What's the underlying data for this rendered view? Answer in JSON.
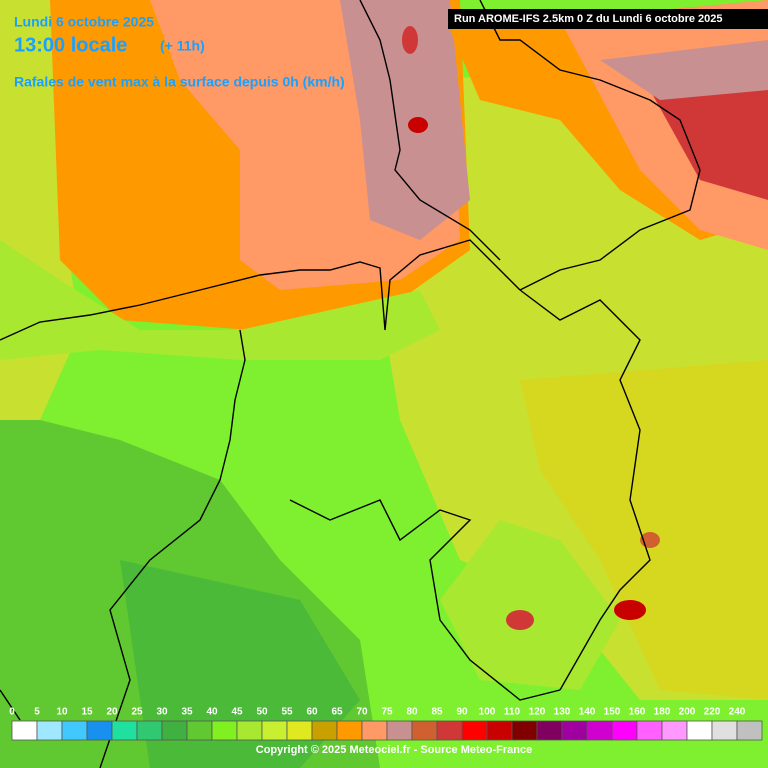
{
  "header": {
    "date": "Lundi 6 octobre 2025",
    "time": "13:00 locale",
    "offset": "(+ 11h)",
    "subtitle": "Rafales de vent max à la surface depuis 0h (km/h)",
    "run": "Run AROME-IFS 2.5km 0 Z du Lundi 6 octobre 2025"
  },
  "legend": {
    "stops": [
      {
        "value": 0,
        "color": "#ffffff"
      },
      {
        "value": 5,
        "color": "#a0e8ff"
      },
      {
        "value": 10,
        "color": "#40c8ff"
      },
      {
        "value": 15,
        "color": "#1890f0"
      },
      {
        "value": 20,
        "color": "#20e0a0"
      },
      {
        "value": 25,
        "color": "#30c870"
      },
      {
        "value": 30,
        "color": "#40b040"
      },
      {
        "value": 35,
        "color": "#60c830"
      },
      {
        "value": 40,
        "color": "#80f020"
      },
      {
        "value": 45,
        "color": "#a8e830"
      },
      {
        "value": 50,
        "color": "#c8f030"
      },
      {
        "value": 55,
        "color": "#e0e820"
      },
      {
        "value": 60,
        "color": "#c8a000"
      },
      {
        "value": 65,
        "color": "#ff9900"
      },
      {
        "value": 70,
        "color": "#ff9966"
      },
      {
        "value": 75,
        "color": "#c89090"
      },
      {
        "value": 80,
        "color": "#d06030"
      },
      {
        "value": 85,
        "color": "#d03838"
      },
      {
        "value": 90,
        "color": "#ff0000"
      },
      {
        "value": 100,
        "color": "#c80000"
      },
      {
        "value": 110,
        "color": "#800000"
      },
      {
        "value": 120,
        "color": "#800060"
      },
      {
        "value": 130,
        "color": "#a000a0"
      },
      {
        "value": 140,
        "color": "#d000d0"
      },
      {
        "value": 150,
        "color": "#ff00ff"
      },
      {
        "value": 160,
        "color": "#ff60ff"
      },
      {
        "value": 180,
        "color": "#ff99ff"
      },
      {
        "value": 200,
        "color": "#ffffff"
      },
      {
        "value": 220,
        "color": "#e0e0e0"
      },
      {
        "value": 240,
        "color": "#c0c0c0"
      }
    ]
  },
  "footer": {
    "copyright": "Copyright © 2025 Meteociel.fr - Source Meteo-France"
  }
}
